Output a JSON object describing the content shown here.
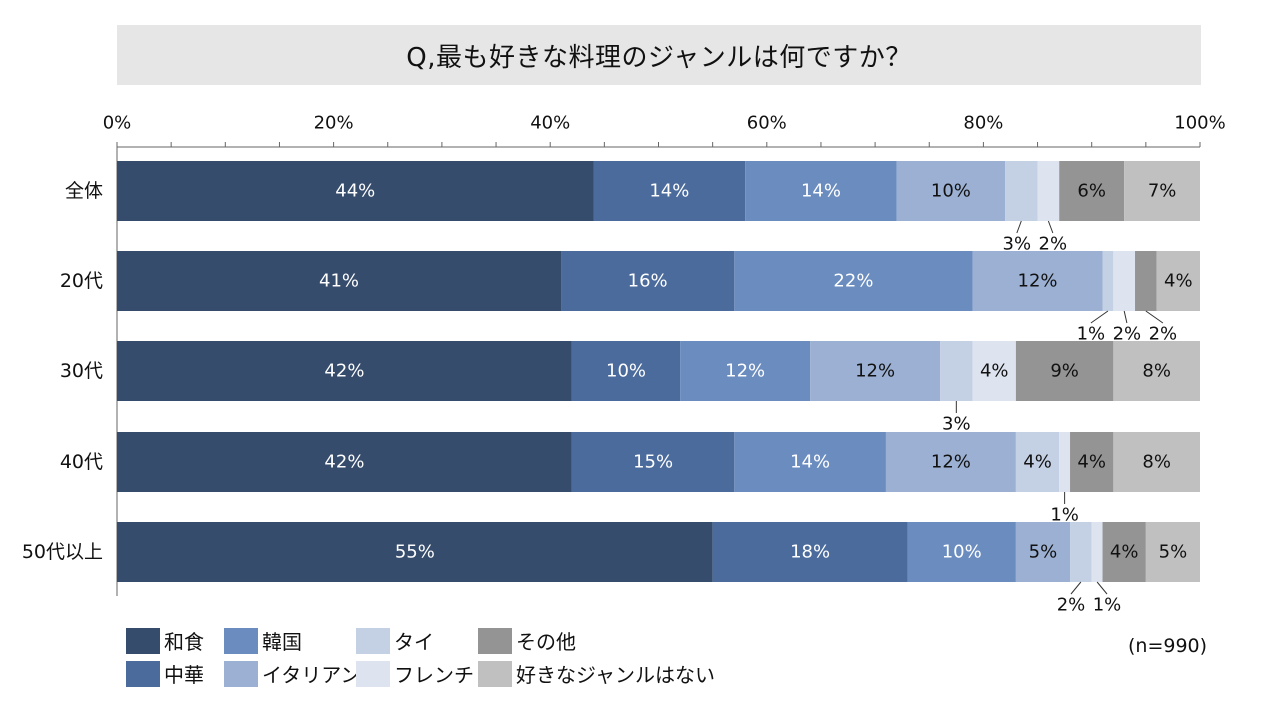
{
  "title": "Q,最も好きな料理のジャンルは何ですか？",
  "note": "(n=990)",
  "colors": {
    "washoku": "#364c6c",
    "chuka": "#4b6b9c",
    "kankoku": "#6a8cbf",
    "italian": "#9bb0d2",
    "tai": "#c4d0e4",
    "french": "#dde4ef",
    "sonota": "#949494",
    "nashi": "#c0c0c0"
  },
  "legend": [
    {
      "label": "和食",
      "color": "#364c6c"
    },
    {
      "label": "韓国",
      "color": "#6a8cbf"
    },
    {
      "label": "タイ",
      "color": "#c4d0e4"
    },
    {
      "label": "その他",
      "color": "#949494"
    },
    {
      "label": "中華",
      "color": "#4b6b9c"
    },
    {
      "label": "イタリアン",
      "color": "#9bb0d2"
    },
    {
      "label": "フレンチ",
      "color": "#dde4ef"
    },
    {
      "label": "好きなジャンルはない",
      "color": "#c0c0c0"
    }
  ],
  "chart_data": {
    "type": "bar",
    "orientation": "horizontal",
    "stacked": "percent",
    "title": "Q,最も好きな料理のジャンルは何ですか？",
    "xlim": [
      0,
      100
    ],
    "xticks": [
      "0%",
      "20%",
      "40%",
      "60%",
      "80%",
      "100%"
    ],
    "categories": [
      "全体",
      "20代",
      "30代",
      "40代",
      "50代以上"
    ],
    "series": [
      {
        "name": "和食",
        "values": [
          44,
          41,
          42,
          42,
          55
        ]
      },
      {
        "name": "中華",
        "values": [
          14,
          16,
          10,
          15,
          18
        ]
      },
      {
        "name": "韓国",
        "values": [
          14,
          22,
          12,
          14,
          10
        ]
      },
      {
        "name": "イタリアン",
        "values": [
          10,
          12,
          12,
          12,
          5
        ]
      },
      {
        "name": "タイ",
        "values": [
          3,
          1,
          3,
          4,
          2
        ]
      },
      {
        "name": "フレンチ",
        "values": [
          2,
          2,
          4,
          1,
          1
        ]
      },
      {
        "name": "その他",
        "values": [
          6,
          2,
          9,
          4,
          4
        ]
      },
      {
        "name": "好きなジャンルはない",
        "values": [
          7,
          4,
          8,
          8,
          5
        ]
      }
    ],
    "legend_position": "bottom-left"
  }
}
